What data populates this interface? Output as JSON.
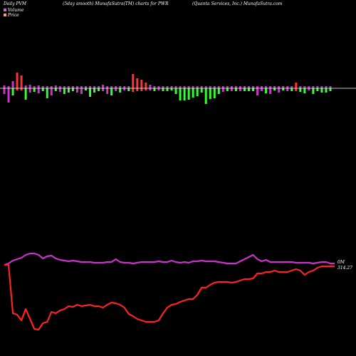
{
  "header": {
    "left": "Daily PVM",
    "center_left": "(5day smooth) MunafaSutra(TM) charts for PWR",
    "center_right": "(Quanta Services, Inc.) MunafaSutra.com"
  },
  "legend": {
    "volume_label": "Volume",
    "price_label": "Price",
    "volume_color": "#cc66cc",
    "price_color": "#ff9966"
  },
  "end_labels": {
    "volume": "0M",
    "price": "314.27"
  },
  "colors": {
    "background": "#000000",
    "up_bar": "#33ff33",
    "down_bar": "#ff3333",
    "neutral_bar": "#cc33cc",
    "baseline": "#ffffff",
    "volume_line": "#cc33cc",
    "price_line": "#ff2222"
  },
  "chart_data": {
    "type": "bar",
    "index": [
      1,
      2,
      3,
      4,
      5,
      6,
      7,
      8,
      9,
      10,
      11,
      12,
      13,
      14,
      15,
      16,
      17,
      18,
      19,
      20,
      21,
      22,
      23,
      24,
      25,
      26,
      27,
      28,
      29,
      30,
      31,
      32,
      33,
      34,
      35,
      36,
      37,
      38,
      39,
      40,
      41,
      42,
      43,
      44,
      45,
      46,
      47,
      48,
      49,
      50,
      51,
      52,
      53,
      54,
      55,
      56,
      57,
      58,
      59,
      60,
      61,
      62,
      63,
      64,
      65,
      66,
      67,
      68,
      69,
      70,
      71,
      72,
      73,
      74,
      75,
      76,
      77,
      78
    ],
    "pvm_bars": {
      "up": [
        8,
        20,
        10,
        3,
        3,
        16,
        6,
        5,
        7,
        4,
        14,
        10,
        4,
        5,
        8,
        6,
        4,
        6,
        8,
        3,
        12,
        6,
        4,
        4,
        8,
        10,
        4,
        6,
        3,
        4,
        5,
        4,
        4,
        3,
        3,
        4,
        3,
        4,
        4,
        3,
        8,
        17,
        17,
        16,
        13,
        11,
        6,
        22,
        15,
        14,
        8,
        5,
        4,
        4,
        4,
        4,
        4,
        4,
        4,
        10,
        4,
        7,
        8,
        3,
        6,
        3,
        4,
        4,
        4,
        5,
        7,
        3,
        8,
        4,
        6,
        6,
        4,
        0
      ],
      "down": [
        4,
        3,
        10,
        22,
        18,
        4,
        5,
        3,
        4,
        3,
        3,
        3,
        4,
        3,
        3,
        3,
        3,
        3,
        3,
        3,
        3,
        3,
        3,
        5,
        3,
        3,
        3,
        3,
        3,
        3,
        20,
        14,
        12,
        8,
        5,
        3,
        3,
        3,
        3,
        3,
        3,
        3,
        3,
        3,
        3,
        3,
        3,
        3,
        3,
        3,
        3,
        3,
        3,
        3,
        3,
        3,
        3,
        3,
        3,
        3,
        3,
        3,
        3,
        3,
        3,
        3,
        3,
        3,
        8,
        3,
        3,
        3,
        3,
        3,
        3,
        3,
        3,
        0
      ],
      "up_color_index": [
        3,
        6,
        8,
        10,
        11,
        13,
        15,
        16,
        17,
        20,
        21,
        22,
        23,
        26,
        28,
        30,
        32,
        36,
        38,
        39,
        40,
        41,
        42,
        43,
        44,
        45,
        46,
        47,
        48,
        49,
        50,
        51,
        53,
        55,
        57,
        58,
        59,
        62,
        64,
        66,
        68,
        70,
        71,
        73,
        74,
        75,
        76,
        77
      ],
      "down_color_index": [
        4,
        5,
        31,
        32,
        33,
        34,
        69
      ]
    },
    "volume_line": [
      372,
      370,
      366,
      364,
      362,
      358,
      356,
      356,
      358,
      363,
      360,
      359,
      363,
      365,
      366,
      367,
      366,
      367,
      368,
      368,
      368,
      369,
      369,
      369,
      368,
      368,
      364,
      368,
      369,
      369,
      370,
      369,
      368,
      368,
      368,
      368,
      367,
      368,
      368,
      366,
      368,
      369,
      368,
      369,
      367,
      367,
      366,
      367,
      367,
      367,
      368,
      369,
      370,
      370,
      370,
      367,
      364,
      361,
      358,
      364,
      367,
      365,
      368,
      368,
      368,
      368,
      368,
      368,
      369,
      369,
      369,
      369,
      370,
      369,
      368,
      368,
      370,
      370
    ],
    "price_line": [
      372,
      372,
      440,
      442,
      450,
      434,
      448,
      462,
      463,
      454,
      452,
      438,
      440,
      436,
      434,
      430,
      431,
      428,
      430,
      429,
      428,
      430,
      430,
      432,
      428,
      425,
      426,
      428,
      432,
      441,
      444,
      448,
      450,
      452,
      452,
      452,
      450,
      440,
      432,
      428,
      427,
      424,
      422,
      420,
      420,
      414,
      404,
      404,
      400,
      397,
      396,
      396,
      396,
      397,
      396,
      394,
      392,
      392,
      391,
      384,
      384,
      382,
      382,
      380,
      382,
      382,
      382,
      380,
      378,
      380,
      386,
      382,
      380,
      376,
      374,
      374,
      374,
      374
    ],
    "y_unit": "pixel-row on source image (lower = higher value)",
    "title": "",
    "xlabel": "",
    "ylabel": ""
  }
}
